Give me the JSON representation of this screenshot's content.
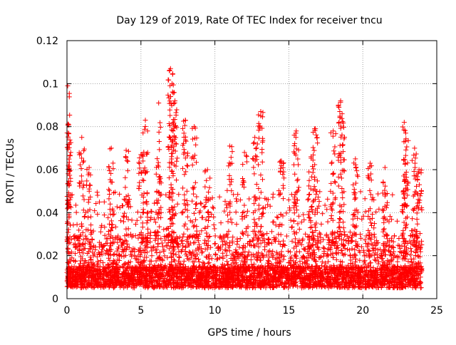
{
  "chart_data": {
    "type": "scatter",
    "title": "Day 129 of 2019, Rate Of TEC Index for receiver tncu",
    "xlabel": "GPS time / hours",
    "ylabel": "ROTI / TECUs",
    "xlim": [
      0,
      25
    ],
    "ylim": [
      0,
      0.12
    ],
    "xticks": [
      0,
      5,
      10,
      15,
      20,
      25
    ],
    "xtick_labels": [
      "0",
      "5",
      "10",
      "15",
      "20",
      "25"
    ],
    "yticks": [
      0,
      0.02,
      0.04,
      0.06,
      0.08,
      0.1,
      0.12
    ],
    "ytick_labels": [
      "0",
      "0.02",
      "0.04",
      "0.06",
      "0.08",
      "0.1",
      "0.12"
    ],
    "grid": true,
    "marker": "+",
    "series": [
      {
        "name": "ROTI",
        "color": "#ff0000",
        "x_range_hours": [
          0,
          24
        ],
        "typical_range": [
          0.005,
          0.03
        ],
        "peaks": [
          {
            "x": 0.05,
            "y": 0.099
          },
          {
            "x": 0.1,
            "y": 0.077
          },
          {
            "x": 0.1,
            "y": 0.062
          },
          {
            "x": 1.0,
            "y": 0.075
          },
          {
            "x": 1.5,
            "y": 0.061
          },
          {
            "x": 3.0,
            "y": 0.07
          },
          {
            "x": 4.0,
            "y": 0.069
          },
          {
            "x": 5.0,
            "y": 0.067
          },
          {
            "x": 5.3,
            "y": 0.083
          },
          {
            "x": 6.2,
            "y": 0.091
          },
          {
            "x": 7.0,
            "y": 0.107
          },
          {
            "x": 7.1,
            "y": 0.1
          },
          {
            "x": 7.3,
            "y": 0.092
          },
          {
            "x": 8.0,
            "y": 0.083
          },
          {
            "x": 8.6,
            "y": 0.08
          },
          {
            "x": 9.5,
            "y": 0.06
          },
          {
            "x": 11.0,
            "y": 0.071
          },
          {
            "x": 12.0,
            "y": 0.068
          },
          {
            "x": 12.7,
            "y": 0.075
          },
          {
            "x": 13.1,
            "y": 0.087
          },
          {
            "x": 14.5,
            "y": 0.064
          },
          {
            "x": 15.5,
            "y": 0.078
          },
          {
            "x": 16.5,
            "y": 0.066
          },
          {
            "x": 16.8,
            "y": 0.079
          },
          {
            "x": 18.0,
            "y": 0.078
          },
          {
            "x": 18.5,
            "y": 0.092
          },
          {
            "x": 18.6,
            "y": 0.086
          },
          {
            "x": 19.5,
            "y": 0.065
          },
          {
            "x": 20.5,
            "y": 0.063
          },
          {
            "x": 21.5,
            "y": 0.061
          },
          {
            "x": 22.8,
            "y": 0.082
          },
          {
            "x": 22.9,
            "y": 0.077
          },
          {
            "x": 23.5,
            "y": 0.07
          },
          {
            "x": 23.8,
            "y": 0.06
          }
        ]
      }
    ]
  }
}
